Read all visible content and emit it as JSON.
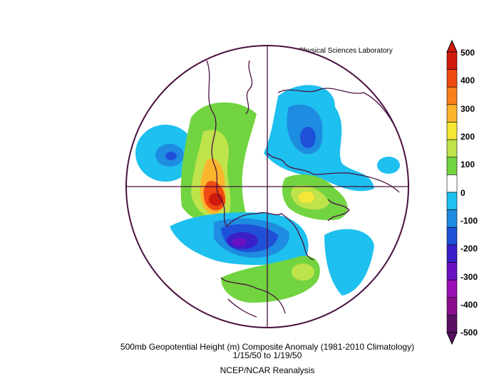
{
  "header": {
    "credit": "NOAA Physical Sciences Laboratory"
  },
  "caption": {
    "line1": "500mb Geopotential Height (m) Composite Anomaly (1981-2010 Climatology)",
    "line2": "1/15/50   to 1/19/50",
    "line3": "NCEP/NCAR Reanalysis"
  },
  "colorbar": {
    "tick_labels": [
      "500",
      "400",
      "300",
      "200",
      "100",
      "0",
      "-100",
      "-200",
      "-300",
      "-400",
      "-500"
    ],
    "colors": [
      "#d01a0d",
      "#f04a12",
      "#f7801c",
      "#fbb52d",
      "#f4e735",
      "#bfe34a",
      "#72d440",
      "#ffffff",
      "#1ec0ef",
      "#1e8ce0",
      "#1f50d8",
      "#3a1fc8",
      "#6a11c4",
      "#9b11b8",
      "#8a0e8c",
      "#5a0f63"
    ]
  },
  "map": {
    "projection": "north-polar-stereographic",
    "features": [
      "Eurasia/Russia negative anomaly",
      "Central Asia/Tibet positive anomaly",
      "North Pacific negative anomaly",
      "Canada/North America strong negative anomaly",
      "Europe/Mediterranean positive anomaly",
      "Atlantic positive anomaly"
    ]
  }
}
